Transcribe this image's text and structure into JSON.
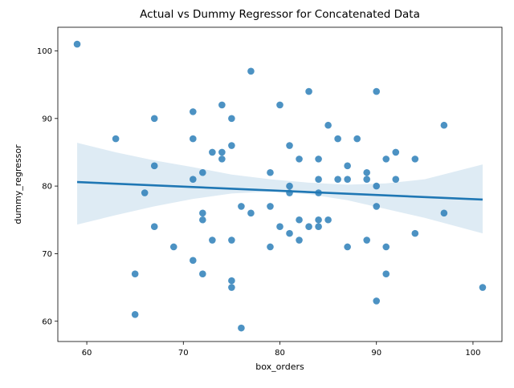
{
  "chart_data": {
    "type": "scatter",
    "title": "Actual vs Dummy Regressor for Concatenated Data",
    "xlabel": "box_orders",
    "ylabel": "dummy_regressor",
    "xlim": [
      57,
      103
    ],
    "ylim": [
      57,
      103.5
    ],
    "xticks": [
      60,
      70,
      80,
      90,
      100
    ],
    "yticks": [
      60,
      70,
      80,
      90,
      100
    ],
    "grid": false,
    "legend": "none",
    "colors": {
      "points": "#1f77b4",
      "regression_line": "#1f77b4",
      "confidence_band": "#1f77b4"
    },
    "regression": {
      "x": [
        59,
        101
      ],
      "y": [
        80.6,
        78.0
      ]
    },
    "confidence_band": {
      "x": [
        59,
        63,
        67,
        71,
        75,
        79,
        83,
        87,
        91,
        95,
        101
      ],
      "lower": [
        74.3,
        75.7,
        77.0,
        78.1,
        78.9,
        79.2,
        78.8,
        77.9,
        76.6,
        75.3,
        73.0
      ],
      "upper": [
        86.4,
        85.0,
        83.8,
        82.8,
        81.7,
        81.0,
        80.5,
        80.2,
        80.4,
        81.0,
        83.2
      ]
    },
    "points": [
      [
        59,
        101
      ],
      [
        63,
        87
      ],
      [
        65,
        67
      ],
      [
        65,
        61
      ],
      [
        66,
        79
      ],
      [
        67,
        90
      ],
      [
        67,
        83
      ],
      [
        67,
        74
      ],
      [
        69,
        71
      ],
      [
        71,
        91
      ],
      [
        71,
        87
      ],
      [
        71,
        81
      ],
      [
        71,
        69
      ],
      [
        72,
        82
      ],
      [
        72,
        76
      ],
      [
        72,
        75
      ],
      [
        72,
        67
      ],
      [
        73,
        85
      ],
      [
        73,
        72
      ],
      [
        74,
        92
      ],
      [
        74,
        85
      ],
      [
        74,
        84
      ],
      [
        75,
        90
      ],
      [
        75,
        86
      ],
      [
        75,
        72
      ],
      [
        75,
        66
      ],
      [
        75,
        65
      ],
      [
        76,
        77
      ],
      [
        76,
        59
      ],
      [
        77,
        97
      ],
      [
        77,
        76
      ],
      [
        79,
        82
      ],
      [
        79,
        77
      ],
      [
        79,
        71
      ],
      [
        80,
        92
      ],
      [
        80,
        74
      ],
      [
        81,
        86
      ],
      [
        81,
        80
      ],
      [
        81,
        79
      ],
      [
        81,
        73
      ],
      [
        82,
        84
      ],
      [
        82,
        75
      ],
      [
        82,
        72
      ],
      [
        83,
        94
      ],
      [
        83,
        74
      ],
      [
        84,
        84
      ],
      [
        84,
        81
      ],
      [
        84,
        79
      ],
      [
        84,
        75
      ],
      [
        84,
        74
      ],
      [
        85,
        89
      ],
      [
        85,
        75
      ],
      [
        86,
        87
      ],
      [
        86,
        81
      ],
      [
        87,
        83
      ],
      [
        87,
        81
      ],
      [
        87,
        71
      ],
      [
        88,
        87
      ],
      [
        89,
        82
      ],
      [
        89,
        81
      ],
      [
        89,
        72
      ],
      [
        90,
        94
      ],
      [
        90,
        80
      ],
      [
        90,
        77
      ],
      [
        90,
        63
      ],
      [
        91,
        84
      ],
      [
        91,
        71
      ],
      [
        91,
        67
      ],
      [
        92,
        85
      ],
      [
        92,
        81
      ],
      [
        94,
        84
      ],
      [
        94,
        73
      ],
      [
        97,
        89
      ],
      [
        97,
        76
      ],
      [
        101,
        65
      ]
    ]
  }
}
